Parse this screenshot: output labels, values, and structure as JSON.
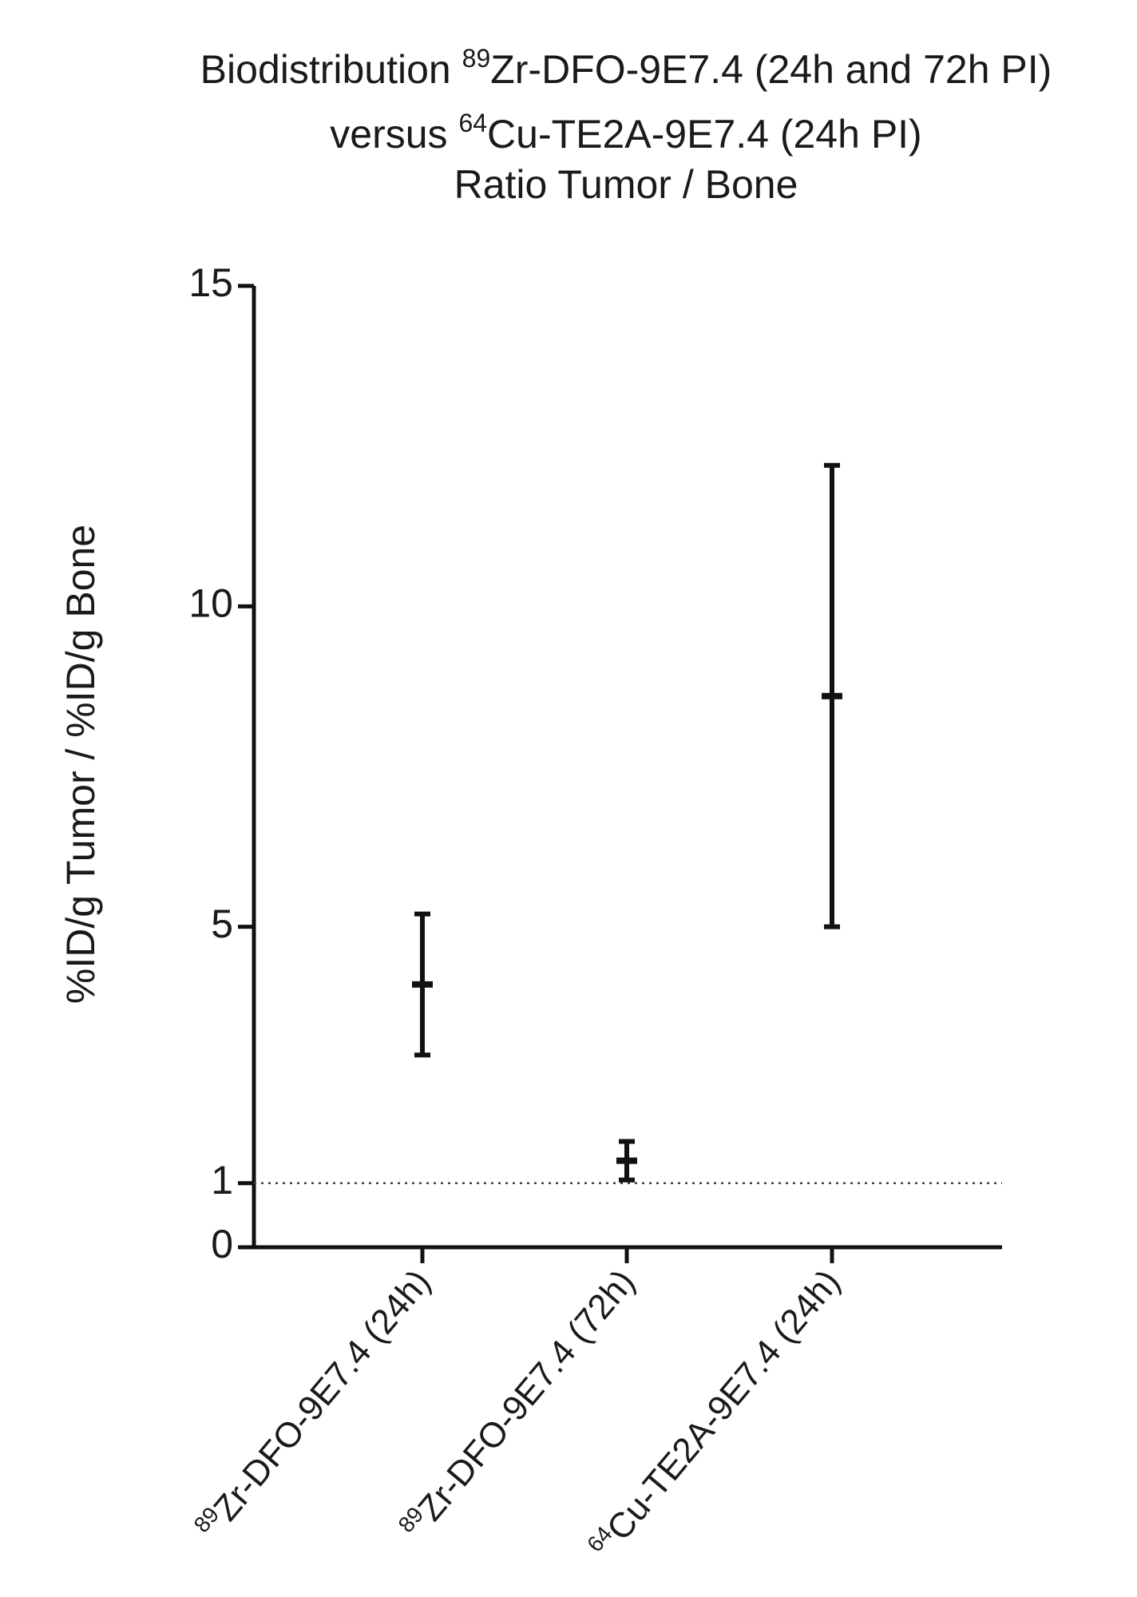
{
  "chart_data": {
    "type": "errorbar",
    "title": [
      [
        {
          "text": "Biodistribution "
        },
        {
          "text": "89",
          "sup": true
        },
        {
          "text": "Zr-DFO-9E7.4 (24h and 72h PI)"
        }
      ],
      [
        {
          "text": "versus "
        },
        {
          "text": "64",
          "sup": true
        },
        {
          "text": "Cu-TE2A-9E7.4 (24h PI)"
        }
      ],
      [
        {
          "text": "Ratio Tumor / Bone"
        }
      ]
    ],
    "y_label": "%ID/g Tumor / %ID/g Bone",
    "categories": [
      {
        "isotope": "89",
        "label": "Zr-DFO-9E7.4 (24h)"
      },
      {
        "isotope": "89",
        "label": "Zr-DFO-9E7.4 (72h)"
      },
      {
        "isotope": "64",
        "label": "Cu-TE2A-9E7.4 (24h)"
      }
    ],
    "values": [
      4.1,
      1.35,
      8.6
    ],
    "errors": [
      1.1,
      0.3,
      3.6
    ],
    "color": "#111111",
    "ylim": [
      0,
      15
    ],
    "yticks": [
      0,
      1,
      5,
      10,
      15
    ],
    "reference_lines": [
      1
    ]
  }
}
